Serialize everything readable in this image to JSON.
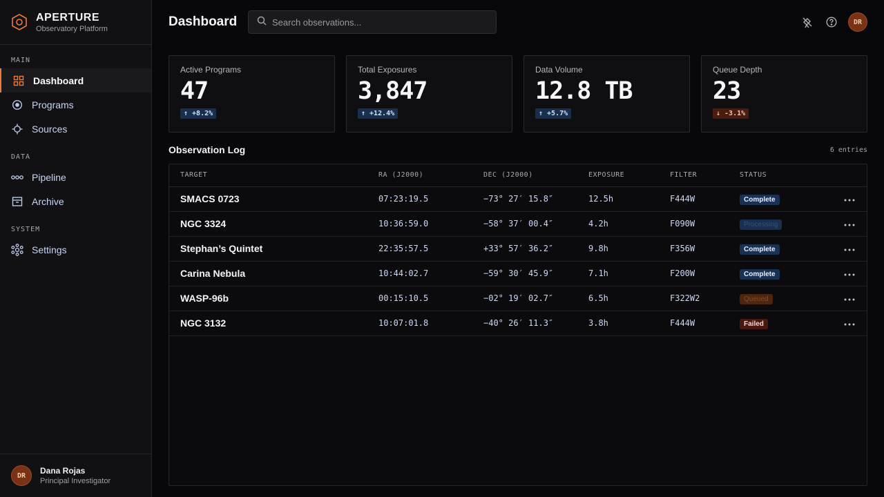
{
  "brand": {
    "name": "APERTURE",
    "subtitle": "Observatory Platform"
  },
  "nav": {
    "sections": [
      {
        "label": "MAIN",
        "items": [
          {
            "label": "Dashboard",
            "icon": "grid-icon",
            "active": true
          },
          {
            "label": "Programs",
            "icon": "target-icon"
          },
          {
            "label": "Sources",
            "icon": "crosshair-icon"
          }
        ]
      },
      {
        "label": "DATA",
        "items": [
          {
            "label": "Pipeline",
            "icon": "pipeline-icon"
          },
          {
            "label": "Archive",
            "icon": "archive-icon"
          }
        ]
      },
      {
        "label": "SYSTEM",
        "items": [
          {
            "label": "Settings",
            "icon": "settings-icon"
          }
        ]
      }
    ]
  },
  "user": {
    "initials": "DR",
    "name": "Dana Rojas",
    "role": "Principal Investigator"
  },
  "header": {
    "title": "Dashboard",
    "search_placeholder": "Search observations...",
    "avatar_initials": "DR"
  },
  "stats": [
    {
      "label": "Active Programs",
      "value": "47",
      "delta": "↑ +8.2%",
      "direction": "up"
    },
    {
      "label": "Total Exposures",
      "value": "3,847",
      "delta": "↑ +12.4%",
      "direction": "up"
    },
    {
      "label": "Data Volume",
      "value": "12.8 TB",
      "delta": "↑ +5.7%",
      "direction": "up"
    },
    {
      "label": "Queue Depth",
      "value": "23",
      "delta": "↓ -3.1%",
      "direction": "down"
    }
  ],
  "log": {
    "title": "Observation Log",
    "count": "6 entries",
    "columns": [
      "TARGET",
      "RA (J2000)",
      "DEC (J2000)",
      "EXPOSURE",
      "FILTER",
      "STATUS"
    ],
    "rows": [
      {
        "target": "SMACS 0723",
        "ra": "07:23:19.5",
        "dec": "−73° 27′ 15.8″",
        "exposure": "12.5h",
        "filter": "F444W",
        "status": "Complete",
        "status_kind": "complete"
      },
      {
        "target": "NGC 3324",
        "ra": "10:36:59.0",
        "dec": "−58° 37′ 00.4″",
        "exposure": "4.2h",
        "filter": "F090W",
        "status": "Processing",
        "status_kind": "processing"
      },
      {
        "target": "Stephan’s Quintet",
        "ra": "22:35:57.5",
        "dec": "+33° 57′ 36.2″",
        "exposure": "9.8h",
        "filter": "F356W",
        "status": "Complete",
        "status_kind": "complete"
      },
      {
        "target": "Carina Nebula",
        "ra": "10:44:02.7",
        "dec": "−59° 30′ 45.9″",
        "exposure": "7.1h",
        "filter": "F200W",
        "status": "Complete",
        "status_kind": "complete"
      },
      {
        "target": "WASP-96b",
        "ra": "00:15:10.5",
        "dec": "−02° 19′ 02.7″",
        "exposure": "6.5h",
        "filter": "F322W2",
        "status": "Queued",
        "status_kind": "queued"
      },
      {
        "target": "NGC 3132",
        "ra": "10:07:01.8",
        "dec": "−40° 26′ 11.3″",
        "exposure": "3.8h",
        "filter": "F444W",
        "status": "Failed",
        "status_kind": "failed"
      }
    ]
  },
  "colors": {
    "accent": "#f07a3a",
    "background": "#08080a",
    "sidebar": "#111113"
  }
}
